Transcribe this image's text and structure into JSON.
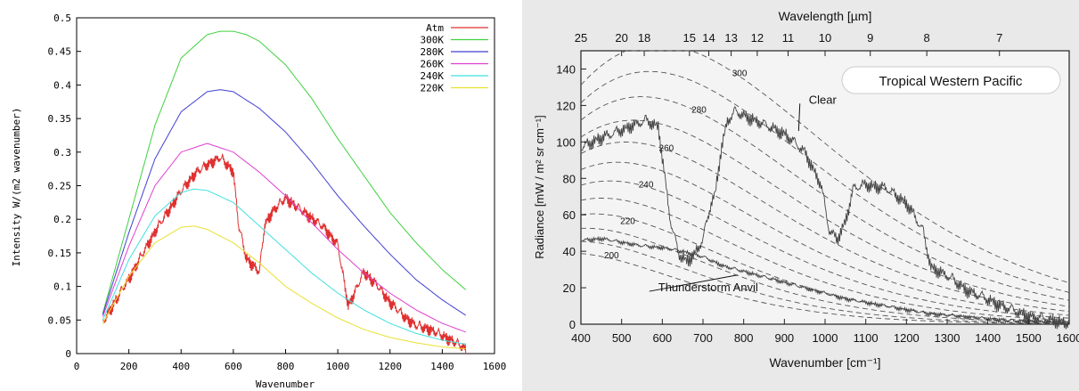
{
  "chart_data": [
    {
      "type": "line",
      "xlabel": "Wavenumber",
      "ylabel": "Intensity W/(m2 wavenumber)",
      "xlim": [
        0,
        1600
      ],
      "ylim": [
        0,
        0.5
      ],
      "xticks": [
        0,
        200,
        400,
        600,
        800,
        1000,
        1200,
        1400,
        1600
      ],
      "yticks": [
        0,
        0.05,
        0.1,
        0.15,
        0.2,
        0.25,
        0.3,
        0.35,
        0.4,
        0.45,
        0.5
      ],
      "grid": false,
      "legend_position": "top-right",
      "series": [
        {
          "name": "Atm",
          "color": "#e03030",
          "noisy": true,
          "x": [
            100,
            200,
            300,
            400,
            450,
            500,
            550,
            600,
            620,
            650,
            700,
            720,
            750,
            800,
            850,
            900,
            950,
            1000,
            1040,
            1060,
            1100,
            1150,
            1200,
            1250,
            1300,
            1350,
            1400,
            1450,
            1490
          ],
          "y": [
            0.055,
            0.12,
            0.19,
            0.25,
            0.275,
            0.29,
            0.3,
            0.28,
            0.2,
            0.15,
            0.13,
            0.2,
            0.22,
            0.24,
            0.225,
            0.21,
            0.195,
            0.17,
            0.08,
            0.095,
            0.13,
            0.11,
            0.085,
            0.065,
            0.05,
            0.045,
            0.035,
            0.025,
            0.015
          ]
        },
        {
          "name": "300K",
          "color": "#40d040",
          "x": [
            100,
            200,
            300,
            400,
            500,
            550,
            600,
            650,
            700,
            800,
            900,
            1000,
            1100,
            1200,
            1300,
            1400,
            1490
          ],
          "y": [
            0.06,
            0.2,
            0.34,
            0.44,
            0.475,
            0.48,
            0.48,
            0.475,
            0.465,
            0.43,
            0.38,
            0.32,
            0.265,
            0.21,
            0.165,
            0.125,
            0.095
          ]
        },
        {
          "name": "280K",
          "color": "#4040d0",
          "x": [
            100,
            200,
            300,
            400,
            500,
            550,
            600,
            700,
            800,
            900,
            1000,
            1100,
            1200,
            1300,
            1400,
            1490
          ],
          "y": [
            0.058,
            0.18,
            0.29,
            0.36,
            0.39,
            0.393,
            0.39,
            0.365,
            0.33,
            0.285,
            0.235,
            0.19,
            0.148,
            0.11,
            0.08,
            0.057
          ]
        },
        {
          "name": "260K",
          "color": "#e040d0",
          "x": [
            100,
            200,
            300,
            400,
            500,
            600,
            700,
            800,
            900,
            1000,
            1100,
            1200,
            1300,
            1400,
            1490
          ],
          "y": [
            0.055,
            0.16,
            0.25,
            0.3,
            0.313,
            0.3,
            0.27,
            0.235,
            0.195,
            0.155,
            0.12,
            0.09,
            0.065,
            0.045,
            0.032
          ]
        },
        {
          "name": "240K",
          "color": "#40e0e0",
          "x": [
            100,
            200,
            300,
            400,
            450,
            500,
            600,
            700,
            800,
            900,
            1000,
            1100,
            1200,
            1300,
            1400,
            1490
          ],
          "y": [
            0.05,
            0.14,
            0.205,
            0.24,
            0.245,
            0.243,
            0.225,
            0.19,
            0.155,
            0.12,
            0.09,
            0.065,
            0.045,
            0.03,
            0.02,
            0.014
          ]
        },
        {
          "name": "220K",
          "color": "#e8e030",
          "x": [
            100,
            200,
            300,
            400,
            450,
            500,
            600,
            700,
            800,
            900,
            1000,
            1100,
            1200,
            1300,
            1400,
            1490
          ],
          "y": [
            0.045,
            0.115,
            0.165,
            0.188,
            0.19,
            0.185,
            0.165,
            0.135,
            0.1,
            0.075,
            0.053,
            0.036,
            0.024,
            0.016,
            0.01,
            0.007
          ]
        }
      ]
    },
    {
      "type": "line",
      "title": "Tropical Western Pacific",
      "xlabel": "Wavenumber [cm⁻¹]",
      "x2label": "Wavelength [µm]",
      "ylabel": "Radiance [mW / m² sr cm⁻¹]",
      "xlim": [
        400,
        1600
      ],
      "ylim": [
        0,
        150
      ],
      "xticks": [
        400,
        500,
        600,
        700,
        800,
        900,
        1000,
        1100,
        1200,
        1300,
        1400,
        1500,
        1600
      ],
      "yticks": [
        0,
        20,
        40,
        60,
        80,
        100,
        120,
        140
      ],
      "top_ticks": [
        {
          "label": "25",
          "x": 400
        },
        {
          "label": "20",
          "x": 500
        },
        {
          "label": "18",
          "x": 555.6
        },
        {
          "label": "15",
          "x": 666.7
        },
        {
          "label": "14",
          "x": 714.3
        },
        {
          "label": "13",
          "x": 769.2
        },
        {
          "label": "12",
          "x": 833.3
        },
        {
          "label": "11",
          "x": 909.1
        },
        {
          "label": "10",
          "x": 1000
        },
        {
          "label": "9",
          "x": 1111.1
        },
        {
          "label": "8",
          "x": 1250
        },
        {
          "label": "7",
          "x": 1428.6
        }
      ],
      "planck_temps": [
        190,
        200,
        210,
        220,
        230,
        240,
        250,
        260,
        270,
        280,
        290,
        300
      ],
      "curve_labels": [
        {
          "text": "300",
          "x": 790,
          "y": 138
        },
        {
          "text": "280",
          "x": 690,
          "y": 118
        },
        {
          "text": "260",
          "x": 610,
          "y": 97
        },
        {
          "text": "240",
          "x": 560,
          "y": 77
        },
        {
          "text": "220",
          "x": 515,
          "y": 57
        },
        {
          "text": "200",
          "x": 475,
          "y": 38
        }
      ],
      "annotations": [
        {
          "text": "Clear",
          "x": 960,
          "y": 123,
          "arrow_to": [
            935,
            106
          ]
        },
        {
          "text": "Thunderstorm Anvil",
          "x": 590,
          "y": 20,
          "arrow_to": [
            785,
            27
          ]
        }
      ],
      "series": [
        {
          "name": "Clear",
          "color": "#444444",
          "noisy": true,
          "x": [
            400,
            440,
            480,
            520,
            560,
            590,
            600,
            620,
            640,
            660,
            680,
            700,
            720,
            730,
            745,
            760,
            780,
            800,
            850,
            900,
            950,
            990,
            1010,
            1030,
            1050,
            1070,
            1100,
            1150,
            1200,
            1240,
            1260,
            1300,
            1350,
            1400,
            1450,
            1500,
            1550,
            1600
          ],
          "y": [
            100,
            105,
            108,
            112,
            115,
            112,
            95,
            60,
            42,
            38,
            42,
            50,
            70,
            75,
            100,
            115,
            120,
            118,
            113,
            108,
            98,
            80,
            55,
            50,
            60,
            78,
            80,
            78,
            70,
            55,
            35,
            30,
            22,
            17,
            12,
            8,
            6,
            4
          ]
        },
        {
          "name": "Thunderstorm Anvil",
          "color": "#444444",
          "noisy": true,
          "x": [
            400,
            450,
            500,
            550,
            600,
            650,
            700,
            750,
            800,
            850,
            900,
            950,
            1000,
            1050,
            1100,
            1150,
            1200,
            1250,
            1300,
            1350,
            1400,
            1450,
            1500,
            1550,
            1600
          ],
          "y": [
            47,
            48,
            46,
            44,
            43,
            41,
            38,
            33,
            30,
            27,
            24,
            21,
            18,
            15,
            13,
            11,
            9,
            7,
            6,
            5,
            4,
            3,
            2.5,
            2,
            1.5
          ]
        }
      ]
    }
  ]
}
